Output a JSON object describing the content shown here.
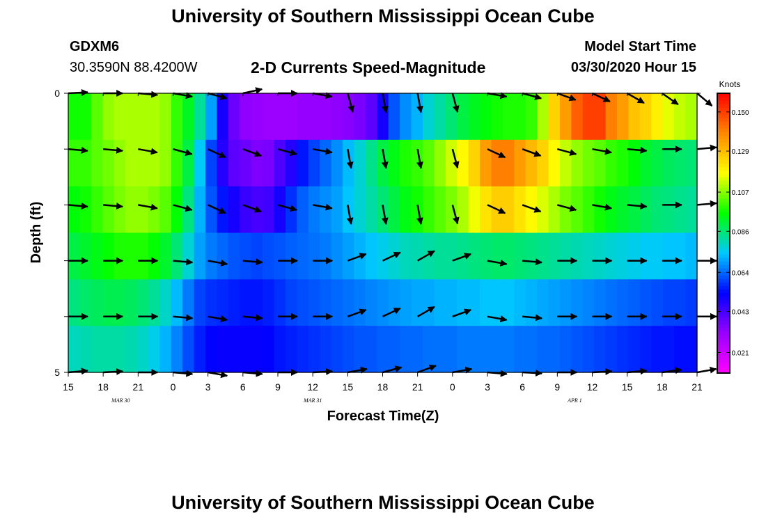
{
  "header": {
    "title": "University of Southern Mississippi Ocean Cube",
    "station_id": "GDXM6",
    "station_coords": "30.3590N 88.4200W",
    "chart_title": "2-D Currents Speed-Magnitude",
    "model_start_label": "Model Start Time",
    "model_start_value": "03/30/2020 Hour 15"
  },
  "footer": {
    "title": "University of Southern Mississippi Ocean Cube"
  },
  "chart_data": {
    "type": "heatmap",
    "title": "2-D Currents Speed-Magnitude",
    "xlabel": "Forecast Time(Z)",
    "ylabel": "Depth (ft)",
    "x_hours": [
      0,
      1,
      2,
      3,
      4,
      5,
      6,
      7,
      8,
      9,
      10,
      11,
      12,
      13,
      14,
      15,
      16,
      17,
      18,
      19,
      20,
      21,
      22,
      23,
      24,
      25,
      26,
      27,
      28,
      29,
      30,
      31,
      32,
      33,
      34,
      35,
      36,
      37,
      38,
      39,
      40,
      41,
      42,
      43,
      44,
      45,
      46,
      47,
      48,
      49,
      50,
      51,
      52,
      53,
      54
    ],
    "x_tick_labels": [
      "15",
      "18",
      "21",
      "0",
      "3",
      "6",
      "9",
      "12",
      "15",
      "18",
      "21",
      "0",
      "3",
      "6",
      "9",
      "12",
      "15",
      "18",
      "21"
    ],
    "date_labels": [
      {
        "text": "MAR 30",
        "hour": 4.5
      },
      {
        "text": "MAR 31",
        "hour": 21
      },
      {
        "text": "APR 1",
        "hour": 43.5
      }
    ],
    "y_depth_levels": [
      0,
      1,
      2,
      3,
      4,
      5
    ],
    "y_tick_labels": [
      "0",
      "5"
    ],
    "ylim": [
      0,
      5
    ],
    "colorbar": {
      "unit": "Knots",
      "min": 0.01,
      "max": 0.16,
      "tick_labels": [
        "0.150",
        "0.129",
        "0.107",
        "0.086",
        "0.064",
        "0.043",
        "0.021"
      ],
      "tick_values": [
        0.15,
        0.129,
        0.107,
        0.086,
        0.064,
        0.043,
        0.021
      ],
      "colors": [
        "#ff00ff",
        "#9a00ff",
        "#0000ff",
        "#00c8ff",
        "#00ff00",
        "#ffff00",
        "#ff8800",
        "#ff0000"
      ]
    },
    "rows": [
      [
        0.097,
        0.097,
        0.103,
        0.108,
        0.11,
        0.11,
        0.11,
        0.11,
        0.108,
        0.1,
        0.093,
        0.083,
        0.07,
        0.05,
        0.038,
        0.033,
        0.032,
        0.031,
        0.031,
        0.031,
        0.032,
        0.032,
        0.032,
        0.033,
        0.034,
        0.036,
        0.04,
        0.05,
        0.062,
        0.068,
        0.072,
        0.078,
        0.082,
        0.086,
        0.09,
        0.093,
        0.095,
        0.097,
        0.098,
        0.098,
        0.1,
        0.11,
        0.125,
        0.135,
        0.145,
        0.15,
        0.15,
        0.14,
        0.135,
        0.128,
        0.125,
        0.12,
        0.115,
        0.112,
        0.11
      ],
      [
        0.1,
        0.1,
        0.103,
        0.105,
        0.108,
        0.11,
        0.11,
        0.11,
        0.108,
        0.1,
        0.09,
        0.075,
        0.06,
        0.048,
        0.04,
        0.038,
        0.035,
        0.036,
        0.042,
        0.048,
        0.055,
        0.06,
        0.064,
        0.068,
        0.073,
        0.078,
        0.084,
        0.09,
        0.094,
        0.098,
        0.1,
        0.103,
        0.108,
        0.113,
        0.118,
        0.125,
        0.135,
        0.14,
        0.14,
        0.135,
        0.13,
        0.125,
        0.118,
        0.112,
        0.108,
        0.105,
        0.103,
        0.1,
        0.098,
        0.095,
        0.092,
        0.09,
        0.088,
        0.087,
        0.086
      ],
      [
        0.095,
        0.097,
        0.1,
        0.103,
        0.106,
        0.108,
        0.108,
        0.106,
        0.103,
        0.096,
        0.085,
        0.072,
        0.062,
        0.055,
        0.05,
        0.045,
        0.043,
        0.044,
        0.05,
        0.058,
        0.063,
        0.066,
        0.068,
        0.07,
        0.074,
        0.078,
        0.082,
        0.086,
        0.09,
        0.094,
        0.097,
        0.1,
        0.103,
        0.106,
        0.11,
        0.116,
        0.122,
        0.126,
        0.126,
        0.122,
        0.118,
        0.114,
        0.11,
        0.106,
        0.103,
        0.1,
        0.097,
        0.094,
        0.092,
        0.09,
        0.088,
        0.086,
        0.085,
        0.084,
        0.083
      ],
      [
        0.09,
        0.092,
        0.094,
        0.096,
        0.098,
        0.098,
        0.098,
        0.096,
        0.092,
        0.086,
        0.078,
        0.07,
        0.066,
        0.064,
        0.062,
        0.061,
        0.06,
        0.061,
        0.062,
        0.063,
        0.064,
        0.065,
        0.066,
        0.068,
        0.07,
        0.072,
        0.074,
        0.076,
        0.078,
        0.08,
        0.081,
        0.082,
        0.083,
        0.083,
        0.084,
        0.085,
        0.086,
        0.087,
        0.087,
        0.086,
        0.085,
        0.084,
        0.083,
        0.082,
        0.081,
        0.08,
        0.079,
        0.078,
        0.077,
        0.076,
        0.075,
        0.075,
        0.074,
        0.074,
        0.073
      ],
      [
        0.085,
        0.087,
        0.088,
        0.089,
        0.089,
        0.088,
        0.086,
        0.083,
        0.079,
        0.073,
        0.066,
        0.06,
        0.058,
        0.057,
        0.056,
        0.055,
        0.055,
        0.056,
        0.058,
        0.06,
        0.061,
        0.062,
        0.063,
        0.064,
        0.065,
        0.066,
        0.067,
        0.068,
        0.069,
        0.07,
        0.071,
        0.071,
        0.072,
        0.072,
        0.073,
        0.073,
        0.074,
        0.074,
        0.074,
        0.073,
        0.072,
        0.071,
        0.07,
        0.069,
        0.068,
        0.067,
        0.066,
        0.065,
        0.064,
        0.063,
        0.062,
        0.061,
        0.06,
        0.06,
        0.059
      ],
      [
        0.08,
        0.081,
        0.082,
        0.082,
        0.082,
        0.081,
        0.079,
        0.076,
        0.072,
        0.067,
        0.061,
        0.056,
        0.053,
        0.052,
        0.052,
        0.052,
        0.052,
        0.053,
        0.055,
        0.056,
        0.057,
        0.058,
        0.059,
        0.06,
        0.061,
        0.062,
        0.062,
        0.063,
        0.063,
        0.064,
        0.064,
        0.065,
        0.065,
        0.065,
        0.066,
        0.066,
        0.066,
        0.066,
        0.066,
        0.065,
        0.065,
        0.064,
        0.064,
        0.063,
        0.062,
        0.061,
        0.06,
        0.059,
        0.058,
        0.057,
        0.056,
        0.055,
        0.055,
        0.054,
        0.054
      ]
    ],
    "vector_hours": [
      0,
      3,
      6,
      9,
      12,
      15,
      18,
      21,
      24,
      27,
      30,
      33,
      36,
      39,
      42,
      45,
      48,
      51,
      54
    ],
    "vector_angles": [
      [
        -3,
        0,
        5,
        10,
        15,
        -12,
        0,
        10,
        75,
        80,
        80,
        75,
        10,
        15,
        20,
        25,
        30,
        35,
        40
      ],
      [
        5,
        5,
        10,
        15,
        25,
        20,
        15,
        10,
        80,
        80,
        80,
        75,
        25,
        20,
        15,
        10,
        5,
        0,
        -5
      ],
      [
        5,
        5,
        10,
        15,
        25,
        20,
        15,
        10,
        80,
        80,
        80,
        75,
        25,
        20,
        15,
        10,
        5,
        0,
        -5
      ],
      [
        0,
        0,
        0,
        5,
        10,
        5,
        0,
        0,
        -20,
        -25,
        -30,
        -20,
        10,
        5,
        0,
        0,
        0,
        0,
        0
      ],
      [
        0,
        0,
        0,
        5,
        10,
        5,
        0,
        0,
        -20,
        -25,
        -30,
        -20,
        10,
        5,
        0,
        0,
        0,
        0,
        0
      ],
      [
        -5,
        -3,
        0,
        5,
        10,
        5,
        0,
        -3,
        -10,
        -15,
        -20,
        -10,
        5,
        3,
        0,
        -3,
        -5,
        -8,
        -10
      ]
    ]
  }
}
